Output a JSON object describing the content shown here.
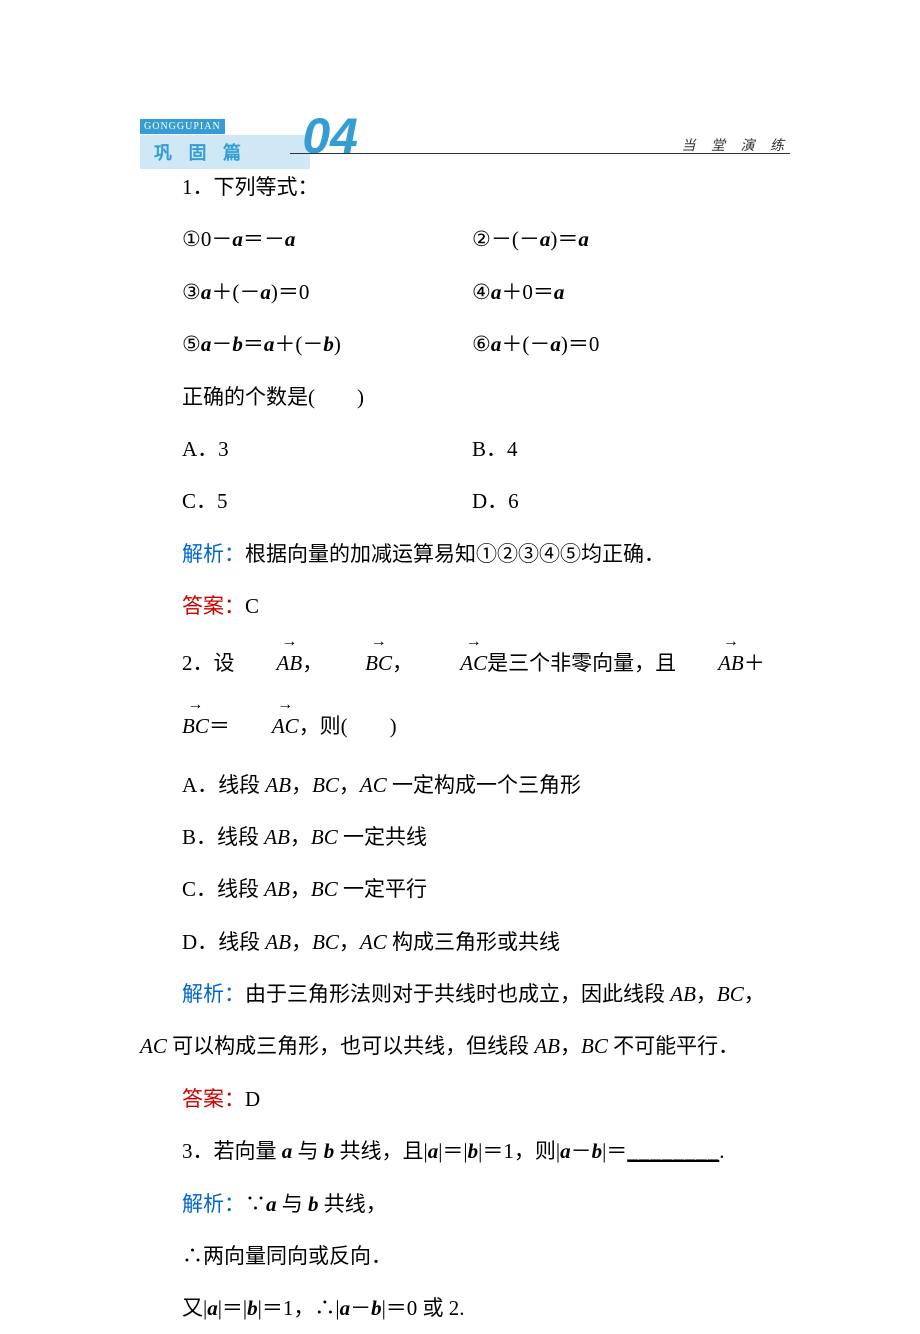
{
  "header": {
    "pinyin": "GONGGUPIAN",
    "label": "巩 固 篇",
    "number": "04",
    "right_text": "当 堂 演 练"
  },
  "q1": {
    "intro": "1．下列等式：",
    "eq1": "①0－a＝－a",
    "eq2": "②－(－a)＝a",
    "eq3": "③a＋(－a)＝0",
    "eq4": "④a＋0＝a",
    "eq5": "⑤a－b＝a＋(－b)",
    "eq6": "⑥a＋(－a)＝0",
    "prompt": "正确的个数是(　　)",
    "optA": "A．3",
    "optB": "B．4",
    "optC": "C．5",
    "optD": "D．6",
    "analysis_label": "解析：",
    "analysis_text": "根据向量的加减运算易知①②③④⑤均正确．",
    "answer_label": "答案：",
    "answer_text": "C"
  },
  "q2": {
    "prefix": "2．设",
    "mid1": "，",
    "mid2": "，",
    "mid3": "是三个非零向量，且",
    "mid4": "＋",
    "mid5": "＝",
    "suffix": "，则(　　)",
    "optA": "A．线段 AB，BC，AC 一定构成一个三角形",
    "optB": "B．线段 AB，BC 一定共线",
    "optC": "C．线段 AB，BC 一定平行",
    "optD": "D．线段 AB，BC，AC 构成三角形或共线",
    "analysis_label": "解析：",
    "analysis_line1": "由于三角形法则对于共线时也成立，因此线段 AB，BC，",
    "analysis_line2": "AC 可以构成三角形，也可以共线，但线段 AB，BC 不可能平行．",
    "answer_label": "答案：",
    "answer_text": "D"
  },
  "q3": {
    "text_pre": "3．若向量 a 与 b 共线，且|a|＝|b|＝1，则|a－b|＝",
    "blank": "________",
    "text_post": ".",
    "analysis_label": "解析：",
    "analysis_text": "∵a 与 b 共线，",
    "line2": "∴两向量同向或反向．",
    "line3": "又|a|＝|b|＝1，∴|a－b|＝0 或 2."
  },
  "colors": {
    "brand_blue": "#359dd3",
    "brand_light": "#d0e8f5",
    "text_blue": "#0066cc",
    "text_red": "#cc0000",
    "background": "#ffffff"
  },
  "typography": {
    "body_fontsize": 21,
    "header_label_fontsize": 18,
    "header_number_fontsize": 50,
    "right_text_fontsize": 14
  }
}
